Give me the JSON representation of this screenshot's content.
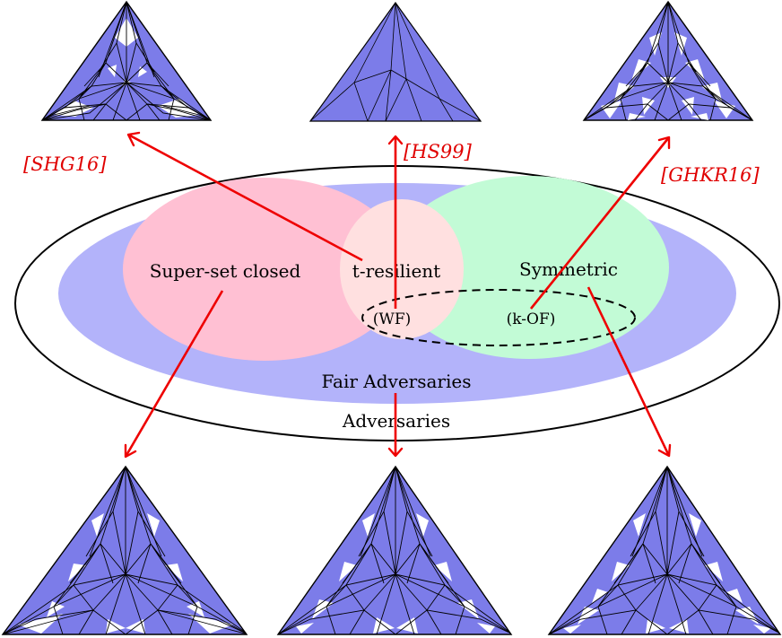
{
  "diagram": {
    "outer_set_label": "Adversaries",
    "fair_set_label": "Fair Adversaries",
    "superset_label": "Super-set closed",
    "tresilient_label": "t-resilient",
    "symmetric_label": "Symmetric",
    "wf_label": "(WF)",
    "kof_label": "(k-OF)",
    "cite_shg": "[SHG16]",
    "cite_hs": "[HS99]",
    "cite_ghkr": "[GHKR16]"
  },
  "colors": {
    "accent_red": "#ee0000",
    "fair_blue": "#b3b3fa",
    "superset_pink": "#ffc0d3",
    "tresilient_light": "#ffe0e0",
    "symmetric_green": "#c2fbd6",
    "triangle_fill": "#7c7ce9"
  }
}
